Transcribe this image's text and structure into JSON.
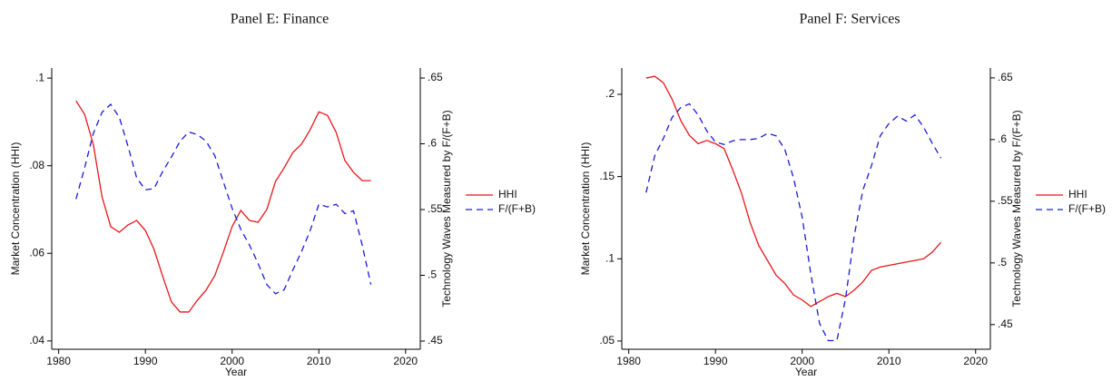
{
  "chart_data": [
    {
      "type": "line",
      "title": "Panel E: Finance",
      "x_label": "Year",
      "y_label": "Market Concentration (HHI)",
      "y2_label": "Technology Waves Measured by F/(F+B)",
      "x": [
        1982,
        1983,
        1984,
        1985,
        1986,
        1987,
        1988,
        1989,
        1990,
        1991,
        1992,
        1993,
        1994,
        1995,
        1996,
        1997,
        1998,
        1999,
        2000,
        2001,
        2002,
        2003,
        2004,
        2005,
        2006,
        2007,
        2008,
        2009,
        2010,
        2011,
        2012,
        2013,
        2014,
        2015,
        2016
      ],
      "xlim": [
        1979.2,
        2021.7
      ],
      "xticks": [
        1980,
        1990,
        2000,
        2010,
        2020
      ],
      "ylim": [
        0.0381,
        0.1023
      ],
      "yticks": [
        {
          "value": 0.04,
          "label": ".04"
        },
        {
          "value": 0.06,
          "label": ".06"
        },
        {
          "value": 0.08,
          "label": ".08"
        },
        {
          "value": 0.1,
          "label": ".1"
        }
      ],
      "y2lim": [
        0.4438,
        0.6576
      ],
      "y2ticks": [
        {
          "value": 0.45,
          "label": ".45"
        },
        {
          "value": 0.5,
          "label": ".5"
        },
        {
          "value": 0.55,
          "label": ".55"
        },
        {
          "value": 0.6,
          "label": ".6"
        },
        {
          "value": 0.65,
          "label": ".65"
        }
      ],
      "legend": "right",
      "series": [
        {
          "name": "HHI",
          "color": "#e8161b",
          "line_style": "solid",
          "values": [
            0.0948,
            0.0917,
            0.0848,
            0.0729,
            0.0661,
            0.0648,
            0.0665,
            0.0675,
            0.0652,
            0.0609,
            0.0547,
            0.0489,
            0.0466,
            0.0466,
            0.0493,
            0.0516,
            0.0549,
            0.0603,
            0.0661,
            0.0698,
            0.0675,
            0.0671,
            0.07,
            0.0764,
            0.0795,
            0.083,
            0.0849,
            0.0882,
            0.0923,
            0.0915,
            0.0876,
            0.0812,
            0.0785,
            0.0766,
            0.0766
          ]
        },
        {
          "name": "F/(F+B)",
          "color": "#1a1adb",
          "line_style": "dashed",
          "axis": "y2",
          "values": [
            0.558,
            0.582,
            0.608,
            0.624,
            0.63,
            0.62,
            0.598,
            0.574,
            0.565,
            0.566,
            0.579,
            0.59,
            0.602,
            0.609,
            0.607,
            0.602,
            0.591,
            0.571,
            0.551,
            0.535,
            0.523,
            0.509,
            0.493,
            0.486,
            0.489,
            0.504,
            0.518,
            0.534,
            0.554,
            0.552,
            0.554,
            0.547,
            0.549,
            0.523,
            0.493
          ]
        }
      ]
    },
    {
      "type": "line",
      "title": "Panel F: Services",
      "x_label": "Year",
      "y_label": "Market Concentration (HHI)",
      "y2_label": "Technology Waves Measured by F/(F+B)",
      "x": [
        1982,
        1983,
        1984,
        1985,
        1986,
        1987,
        1988,
        1989,
        1990,
        1991,
        1992,
        1993,
        1994,
        1995,
        1996,
        1997,
        1998,
        1999,
        2000,
        2001,
        2002,
        2003,
        2004,
        2005,
        2006,
        2007,
        2008,
        2009,
        2010,
        2011,
        2012,
        2013,
        2014,
        2015,
        2016
      ],
      "xlim": [
        1979.2,
        2021.7
      ],
      "xticks": [
        1980,
        1990,
        2000,
        2010,
        2020
      ],
      "ylim": [
        0.045,
        0.216
      ],
      "yticks": [
        {
          "value": 0.05,
          "label": ".05"
        },
        {
          "value": 0.1,
          "label": ".1"
        },
        {
          "value": 0.15,
          "label": ".15"
        },
        {
          "value": 0.2,
          "label": ".2"
        }
      ],
      "y2lim": [
        0.43,
        0.658
      ],
      "y2ticks": [
        {
          "value": 0.45,
          "label": ".45"
        },
        {
          "value": 0.5,
          "label": ".5"
        },
        {
          "value": 0.55,
          "label": ".55"
        },
        {
          "value": 0.6,
          "label": ".6"
        },
        {
          "value": 0.65,
          "label": ".65"
        }
      ],
      "legend": "right",
      "series": [
        {
          "name": "HHI",
          "color": "#e8161b",
          "line_style": "solid",
          "values": [
            0.2099,
            0.211,
            0.207,
            0.197,
            0.184,
            0.175,
            0.17,
            0.172,
            0.17,
            0.167,
            0.154,
            0.14,
            0.122,
            0.108,
            0.099,
            0.09,
            0.085,
            0.078,
            0.075,
            0.071,
            0.074,
            0.077,
            0.079,
            0.077,
            0.081,
            0.086,
            0.093,
            0.095,
            0.096,
            0.097,
            0.098,
            0.099,
            0.1,
            0.104,
            0.11
          ]
        },
        {
          "name": "F/(F+B)",
          "color": "#1a1adb",
          "line_style": "dashed",
          "axis": "y2",
          "values": [
            0.557,
            0.587,
            0.601,
            0.618,
            0.626,
            0.629,
            0.62,
            0.607,
            0.598,
            0.596,
            0.599,
            0.6,
            0.6,
            0.601,
            0.605,
            0.603,
            0.592,
            0.569,
            0.537,
            0.491,
            0.451,
            0.437,
            0.437,
            0.471,
            0.522,
            0.559,
            0.579,
            0.603,
            0.613,
            0.619,
            0.615,
            0.62,
            0.61,
            0.597,
            0.585
          ]
        }
      ]
    }
  ]
}
